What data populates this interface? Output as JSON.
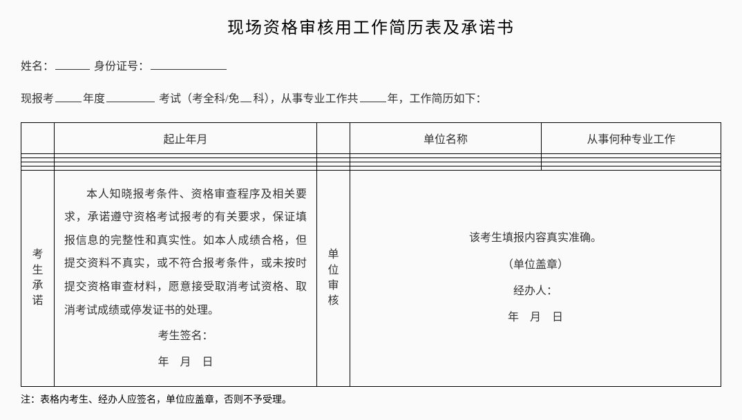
{
  "title": "现场资格审核用工作简历表及承诺书",
  "line1": {
    "nameLabel": "姓名：",
    "idLabel": "身份证号："
  },
  "line2": {
    "prefix": "现报考",
    "yearUnit": "年度",
    "examLabel": "考试（考全科/免",
    "examSuffix": "科），从事专业工作共",
    "yearsSuffix": "年，工作简历如下："
  },
  "headers": {
    "col0": "",
    "col1": "起止年月",
    "col2": "",
    "col3": "单位名称",
    "col4": "从事何种专业工作"
  },
  "commitLabel": "考生承诺",
  "verifyLabel": "单位审核",
  "commitBody": "本人知晓报考条件、资格审查程序及相关要求，承诺遵守资格考试报考的有关要求，保证填报信息的完整性和真实性。如本人成绩合格，但提交资料不真实，或不符合报考条件，或未按时提交资格审查材料，愿意接受取消考试资格、取消考试成绩或停发证书的处理。",
  "commitSign": "考生签名：",
  "commitDate": "年 月 日",
  "verifyLine1": "该考生填报内容真实准确。",
  "verifyLine2": "（单位盖章）",
  "verifyLine3": "经办人：",
  "verifyDate": "年 月 日",
  "note": "注：表格内考生、经办人应签名，单位应盖章，否则不予受理。"
}
